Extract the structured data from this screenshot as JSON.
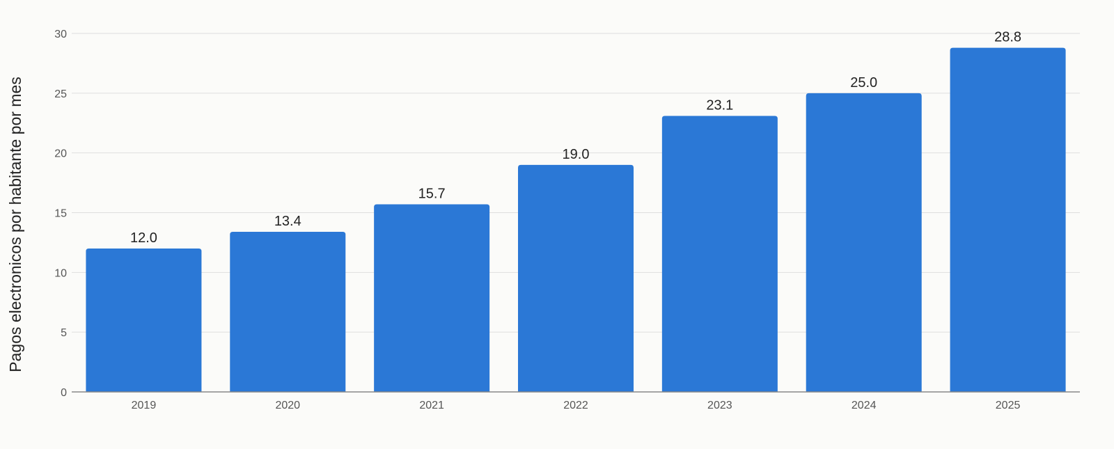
{
  "chart_data": {
    "type": "bar",
    "title": "",
    "xlabel": "",
    "ylabel": "Pagos electronicos por habitante por mes",
    "categories": [
      "2019",
      "2020",
      "2021",
      "2022",
      "2023",
      "2024",
      "2025"
    ],
    "values": [
      12.0,
      13.4,
      15.7,
      19.0,
      23.1,
      25.0,
      28.8
    ],
    "data_labels": [
      "12.0",
      "13.4",
      "15.7",
      "19.0",
      "23.1",
      "25.0",
      "28.8"
    ],
    "y_ticks": [
      0,
      5,
      10,
      15,
      20,
      25,
      30
    ],
    "ylim": [
      0,
      30
    ],
    "grid": true,
    "legend": "none",
    "bar_color": "#2b78d6"
  }
}
